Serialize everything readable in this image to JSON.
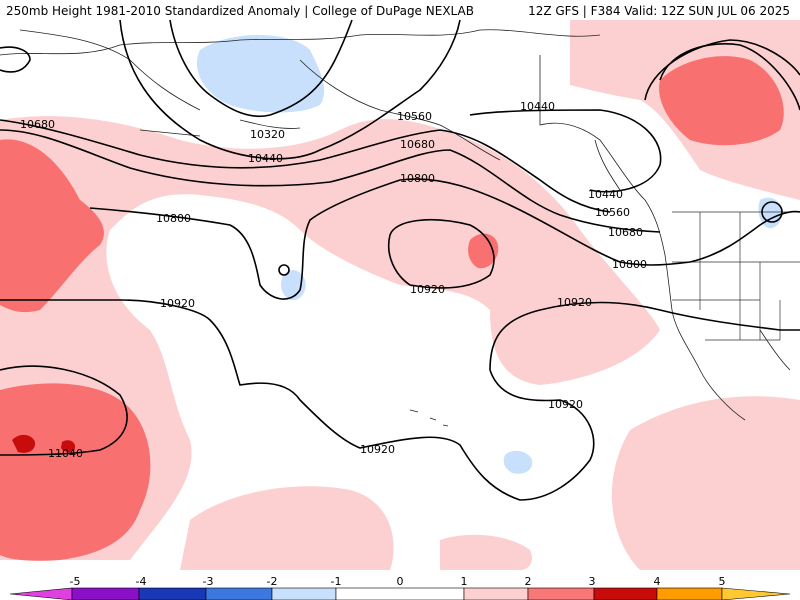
{
  "header": {
    "left_title": "250mb Height 1981-2010 Standardized Anomaly | College of DuPage NEXLAB",
    "right_title": "12Z GFS | F384 Valid: 12Z SUN JUL 06 2025"
  },
  "contour_labels": [
    {
      "id": "c10320",
      "text": "10320"
    },
    {
      "id": "c10440a",
      "text": "10440"
    },
    {
      "id": "c10440b",
      "text": "10440"
    },
    {
      "id": "c10440c",
      "text": "10440"
    },
    {
      "id": "c10560a",
      "text": "10560"
    },
    {
      "id": "c10560b",
      "text": "10560"
    },
    {
      "id": "c10680a",
      "text": "10680"
    },
    {
      "id": "c10680b",
      "text": "10680"
    },
    {
      "id": "c10680c",
      "text": "10680"
    },
    {
      "id": "c10800a",
      "text": "10800"
    },
    {
      "id": "c10800b",
      "text": "10800"
    },
    {
      "id": "c10800c",
      "text": "10800"
    },
    {
      "id": "c10920a",
      "text": "10920"
    },
    {
      "id": "c10920b",
      "text": "10920"
    },
    {
      "id": "c10920c",
      "text": "10920"
    },
    {
      "id": "c10920d",
      "text": "10920"
    },
    {
      "id": "c10920e",
      "text": "10920"
    },
    {
      "id": "c11040",
      "text": "11040"
    }
  ],
  "colorbar": {
    "labels": [
      "-5",
      "-4",
      "-3",
      "-2",
      "-1",
      "0",
      "1",
      "2",
      "3",
      "4",
      "5"
    ],
    "colors": {
      "neg5": "#e040e0",
      "neg4": "#8a10c8",
      "neg3": "#1838b8",
      "neg2": "#3c78e0",
      "neg1": "#c8e0fc",
      "zero": "#ffffff",
      "pos1": "#fcd0d0",
      "pos2": "#f87878",
      "pos3": "#c80c0c",
      "pos4": "#ff9c00",
      "pos5": "#ffc830"
    }
  },
  "colors": {
    "light_blue": "#c8e0fc",
    "light_pink": "#fcd0d0",
    "medium_red": "#f87070",
    "dark_red": "#c80c0c"
  }
}
